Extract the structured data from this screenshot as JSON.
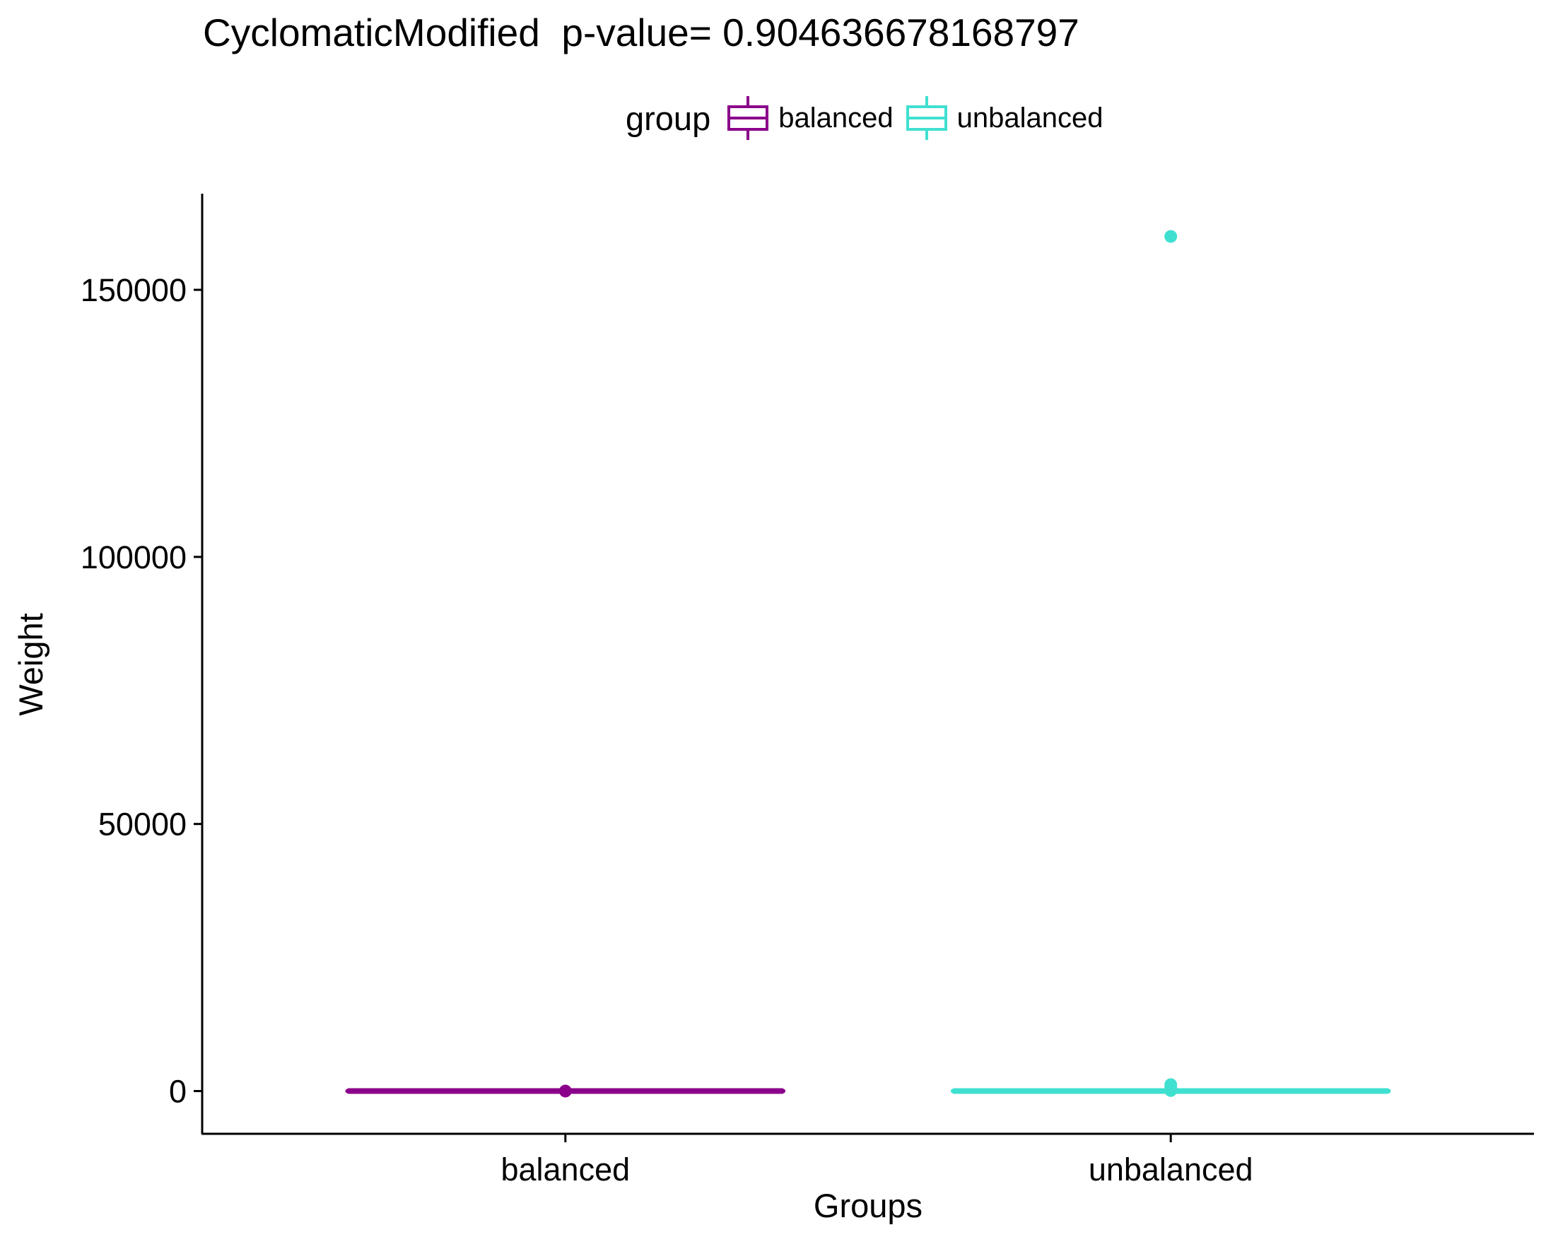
{
  "chart_data": {
    "type": "box",
    "title": "CyclomaticModified  p-value= 0.904636678168797",
    "xlabel": "Groups",
    "ylabel": "Weight",
    "ylim": [
      -8000,
      168000
    ],
    "yticks": [
      0,
      50000,
      100000,
      150000
    ],
    "categories": [
      "balanced",
      "unbalanced"
    ],
    "legend": {
      "title": "group",
      "position": "top",
      "entries": [
        "balanced",
        "unbalanced"
      ]
    },
    "grid": false,
    "series": [
      {
        "name": "balanced",
        "color": "#8B008B",
        "box": {
          "min": 0,
          "q1": 0,
          "median": 0,
          "q3": 0,
          "max": 0
        },
        "outliers": [
          0
        ]
      },
      {
        "name": "unbalanced",
        "color": "#40E0D0",
        "box": {
          "min": 0,
          "q1": 0,
          "median": 0,
          "q3": 0,
          "max": 0
        },
        "outliers": [
          160000,
          1200,
          600,
          100
        ]
      }
    ]
  }
}
